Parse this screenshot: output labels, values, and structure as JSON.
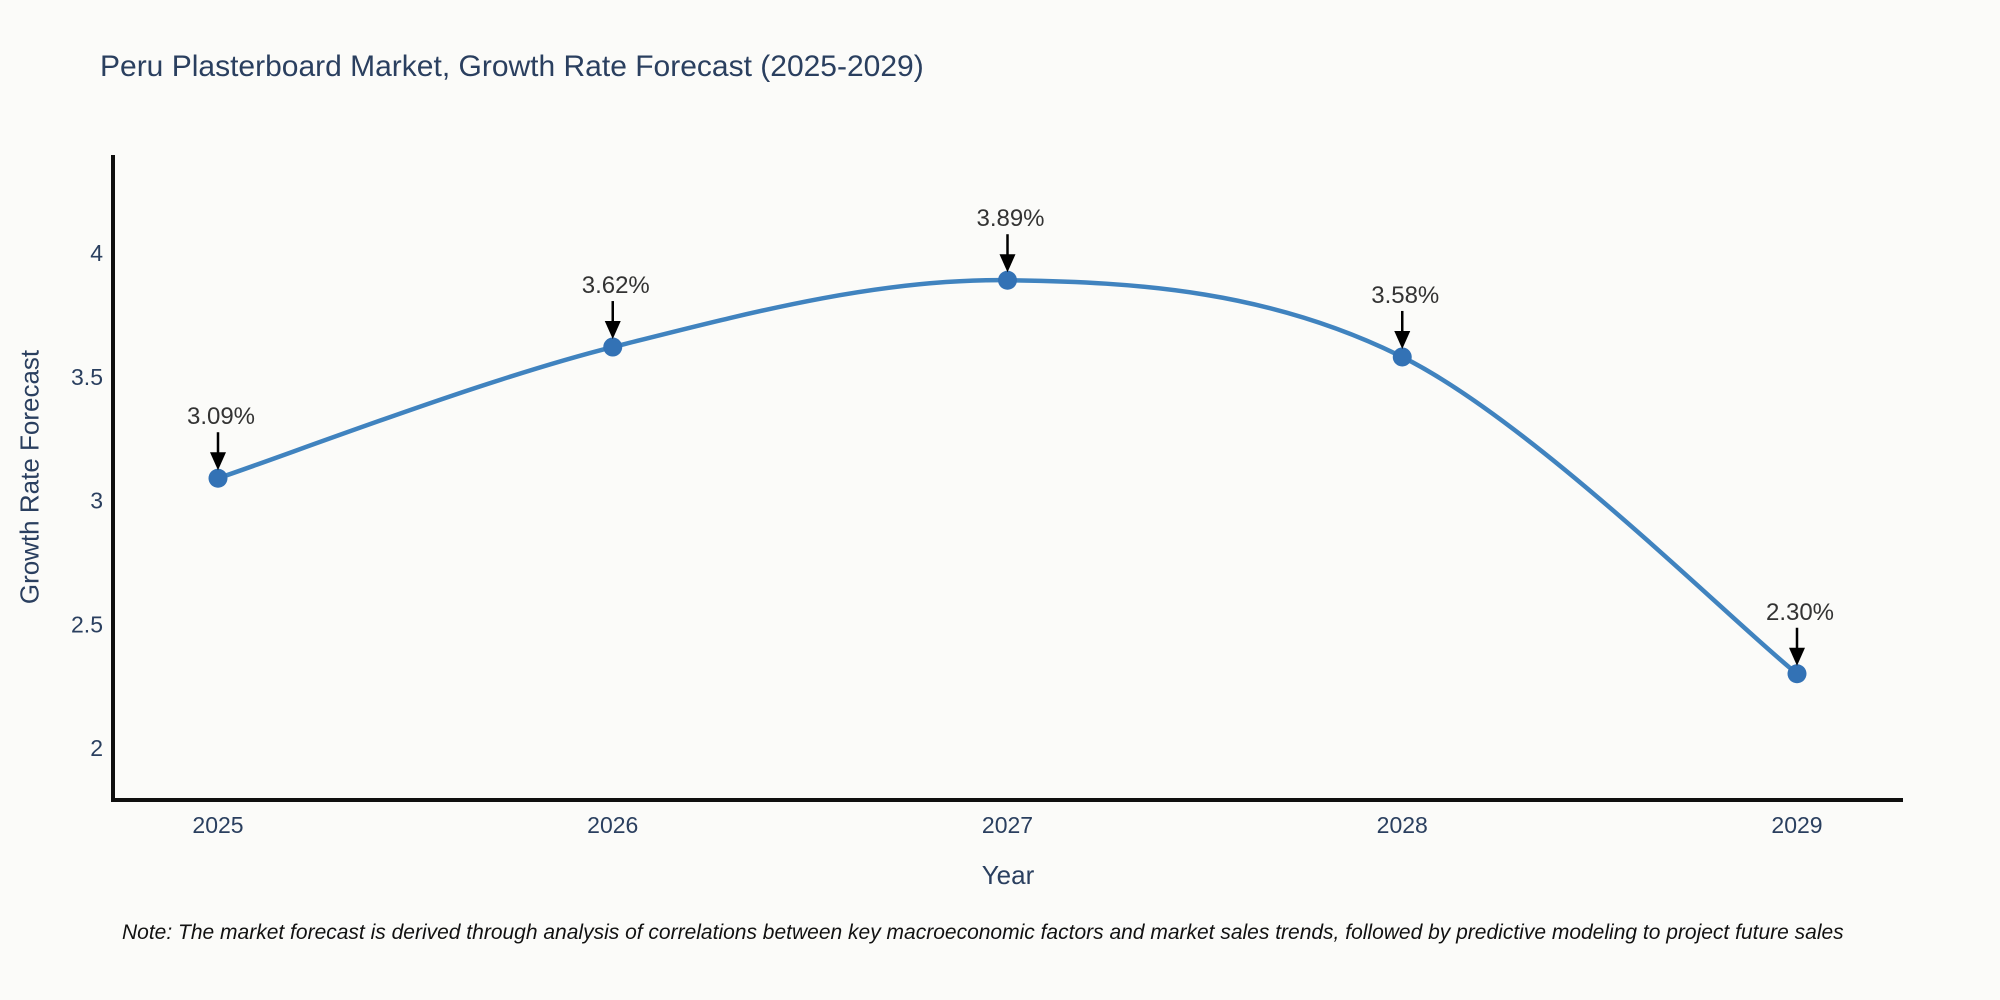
{
  "chart_data": {
    "type": "line",
    "title": "Peru Plasterboard Market, Growth Rate Forecast (2025-2029)",
    "xlabel": "Year",
    "ylabel": "Growth Rate Forecast",
    "x": [
      2025,
      2026,
      2027,
      2028,
      2029
    ],
    "xticklabels": [
      "2025",
      "2026",
      "2027",
      "2028",
      "2029"
    ],
    "series": [
      {
        "name": "Growth Rate Forecast",
        "values": [
          3.09,
          3.62,
          3.89,
          3.58,
          2.3
        ],
        "point_labels": [
          "3.09%",
          "3.62%",
          "3.89%",
          "3.58%",
          "2.30%"
        ]
      }
    ],
    "yticks": [
      2,
      2.5,
      3,
      3.5,
      4
    ],
    "ylim": [
      1.79,
      4.4
    ],
    "xlim": [
      2024.74,
      2029.27
    ],
    "grid": false,
    "legend_position": "none",
    "line_shape": "spline",
    "colors": {
      "line": "#4083bf",
      "marker": "#3372b5",
      "arrow": "#000000",
      "axis_line": "#0f0f0f",
      "tick_label": "#2a3f5f",
      "annotation_text": "#333333",
      "title_text": "#2a3f5f",
      "background": "#fbfbf9"
    }
  },
  "note": "Note: The market forecast is derived through analysis of correlations between key macroeconomic factors and market sales trends, followed by predictive modeling to project future sales"
}
